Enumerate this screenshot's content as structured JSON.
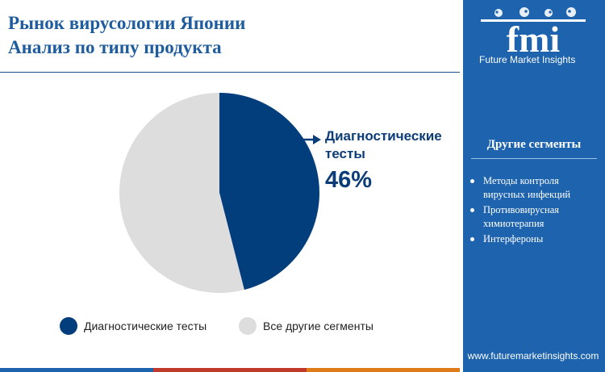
{
  "header": {
    "title_line1": "Рынок вирусологии Японии",
    "title_line2": "Анализ по типу продукта"
  },
  "chart_data": {
    "type": "pie",
    "slices": [
      {
        "label": "Диагностические тесты",
        "value": 46,
        "color": "#033e7c"
      },
      {
        "label": "Все другие сегменты",
        "value": 54,
        "color": "#dddddd"
      }
    ],
    "callout": {
      "label": "Диагностические тесты",
      "value_text": "46%"
    },
    "legend_position": "bottom"
  },
  "legend": [
    {
      "label": "Диагностические тесты",
      "color": "#033e7c"
    },
    {
      "label": "Все другие сегменты",
      "color": "#dddddd"
    }
  ],
  "sidebar": {
    "logo_text": "fmi",
    "logo_tagline": "Future Market Insights",
    "other_segments_title": "Другие сегменты",
    "other_segments": [
      "Методы контроля вирусных инфекций",
      "Противовирусная химиотерапия",
      "Интерфероны"
    ],
    "website": "www.futuremarketinsights.com",
    "background_color": "#1d63ad"
  },
  "bottom_stripe_colors": [
    "#1d63ad",
    "#c0392b",
    "#e07b1a"
  ]
}
